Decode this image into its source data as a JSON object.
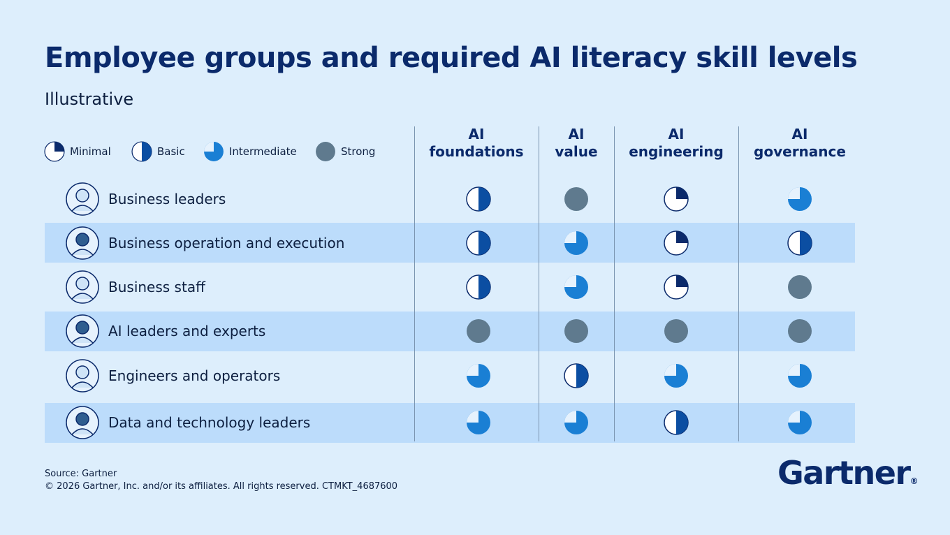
{
  "header": {
    "title": "Employee groups and required AI literacy skill levels",
    "subtitle": "Illustrative"
  },
  "legend": [
    "Minimal",
    "Basic",
    "Intermediate",
    "Strong"
  ],
  "columns": [
    "AI foundations",
    "AI value",
    "AI engineering",
    "AI governance"
  ],
  "rows": [
    {
      "label": "Business leaders",
      "levels": [
        "Basic",
        "Strong",
        "Minimal",
        "Intermediate"
      ]
    },
    {
      "label": "Business operation and execution",
      "levels": [
        "Basic",
        "Intermediate",
        "Minimal",
        "Basic"
      ]
    },
    {
      "label": "Business staff",
      "levels": [
        "Basic",
        "Intermediate",
        "Minimal",
        "Strong"
      ]
    },
    {
      "label": "AI leaders and experts",
      "levels": [
        "Strong",
        "Strong",
        "Strong",
        "Strong"
      ]
    },
    {
      "label": "Engineers and operators",
      "levels": [
        "Intermediate",
        "Basic",
        "Intermediate",
        "Intermediate"
      ]
    },
    {
      "label": "Data and technology leaders",
      "levels": [
        "Intermediate",
        "Intermediate",
        "Basic",
        "Intermediate"
      ]
    }
  ],
  "footer": {
    "source": "Source: Gartner",
    "copyright": "© 2026 Gartner, Inc. and/or its affiliates. All rights reserved. CTMKT_4687600"
  },
  "logo": "Gartner"
}
